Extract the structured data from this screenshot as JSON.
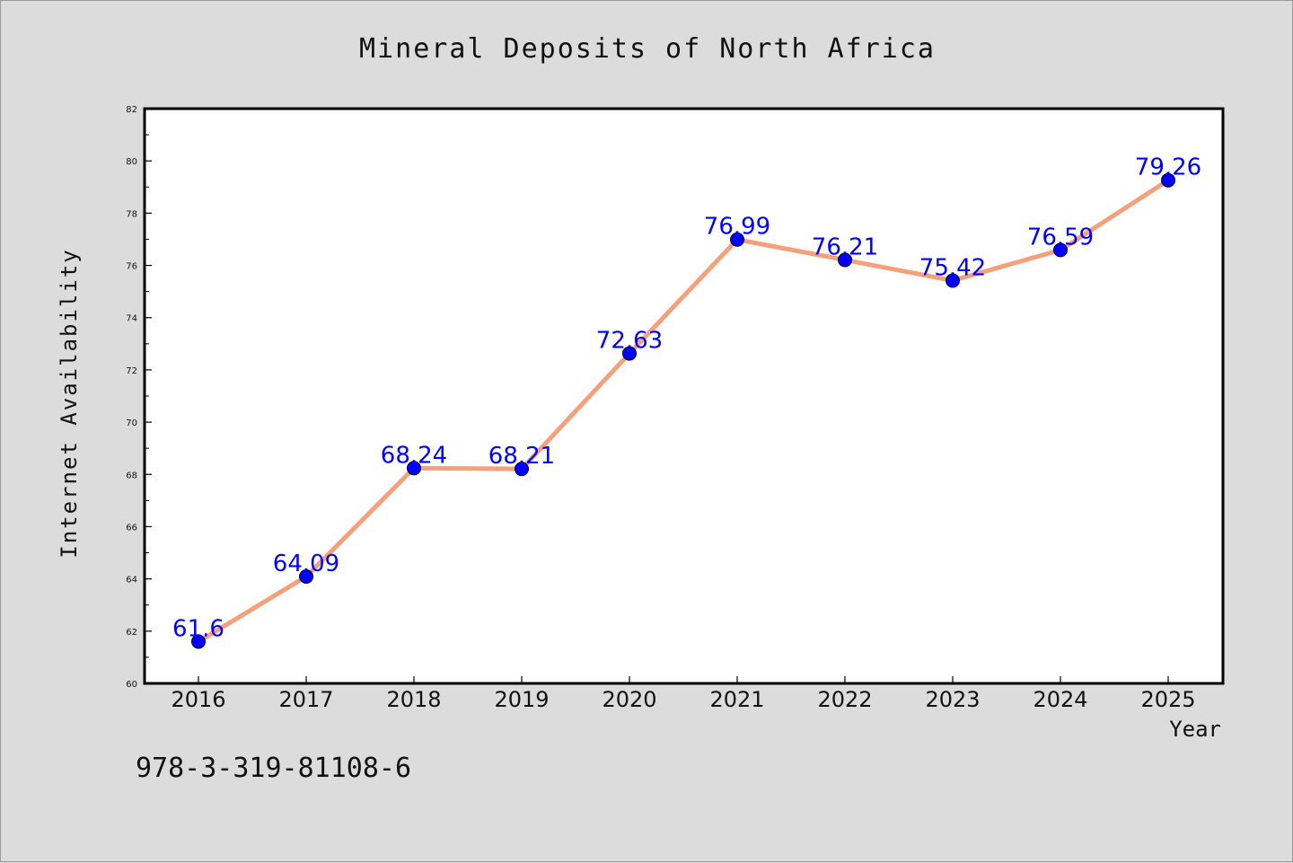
{
  "chart_data": {
    "type": "line",
    "title": "Mineral Deposits of North Africa",
    "xlabel": "Year",
    "ylabel": "Internet Availability",
    "categories": [
      "2016",
      "2017",
      "2018",
      "2019",
      "2020",
      "2021",
      "2022",
      "2023",
      "2024",
      "2025"
    ],
    "series": [
      {
        "values": [
          61.6,
          64.09,
          68.24,
          68.21,
          72.63,
          76.99,
          76.21,
          75.42,
          76.59,
          79.26
        ],
        "data_labels": [
          "61.6",
          "64.09",
          "68.24",
          "68.21",
          "72.63",
          "76.99",
          "76.21",
          "75.42",
          "76.59",
          "79.26"
        ]
      }
    ],
    "ylim": [
      60,
      82
    ],
    "yticks": [
      "60",
      "62",
      "64",
      "66",
      "68",
      "70",
      "72",
      "74",
      "76",
      "78",
      "80",
      "82"
    ],
    "grid": false,
    "line_color": "#f4a07a",
    "marker_color": "#0000ff",
    "label_color": "#0000ff",
    "background_color": "#dcdcdc",
    "plot_background_color": "#ffffff"
  },
  "footer": {
    "text": "978-3-319-81108-6"
  }
}
